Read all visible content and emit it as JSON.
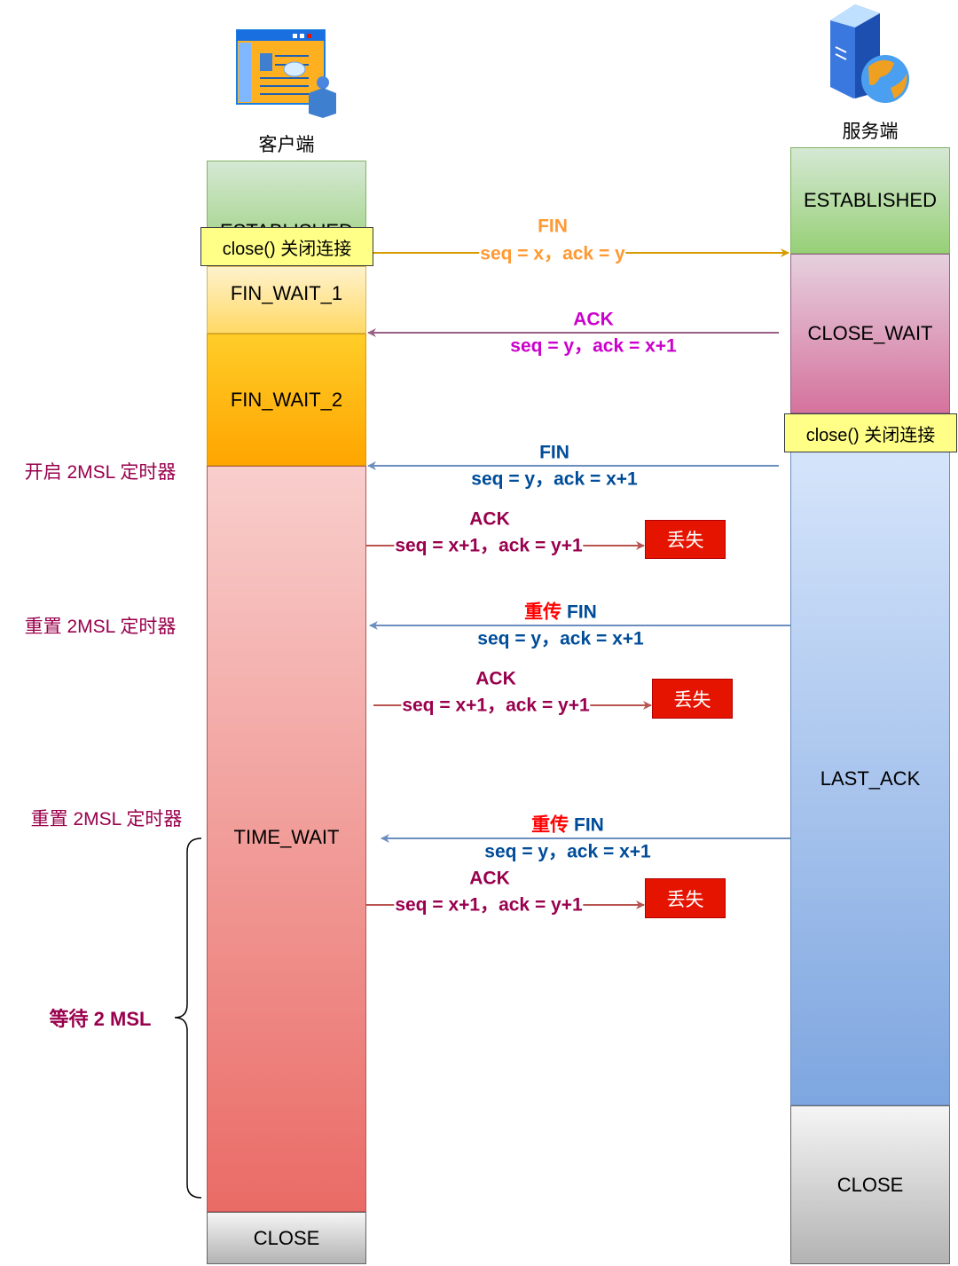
{
  "client": {
    "title": "客户端",
    "icon": "client-browser-user-icon",
    "states": {
      "established": "ESTABLISHED",
      "close_call": "close() 关闭连接",
      "fin_wait_1": "FIN_WAIT_1",
      "fin_wait_2": "FIN_WAIT_2",
      "time_wait": "TIME_WAIT",
      "close": "CLOSE"
    }
  },
  "server": {
    "title": "服务端",
    "icon": "server-globe-icon",
    "states": {
      "established": "ESTABLISHED",
      "close_wait": "CLOSE_WAIT",
      "close_call": "close() 关闭连接",
      "last_ack": "LAST_ACK",
      "close": "CLOSE"
    }
  },
  "side_labels": {
    "start_timer": "开启 2MSL 定时器",
    "reset_timer_1": "重置 2MSL 定时器",
    "reset_timer_2": "重置 2MSL 定时器",
    "wait_2msl": "等待 2 MSL"
  },
  "messages": [
    {
      "direction": "client-to-server",
      "title": "FIN",
      "detail": "seq = x，ack = y",
      "color": "#ff9933",
      "line_color": "#d79b00"
    },
    {
      "direction": "server-to-client",
      "title": "ACK",
      "detail": "seq = y，ack = x+1",
      "color": "#cc00cc",
      "line_color": "#996185"
    },
    {
      "direction": "server-to-client",
      "title": "FIN",
      "detail": "seq = y，ack = x+1",
      "color": "#004c99",
      "line_color": "#6c8ebf"
    },
    {
      "direction": "client-to-server",
      "title": "ACK",
      "detail": "seq = x+1，ack = y+1",
      "color": "#99004d",
      "line_color": "#b85450",
      "lost": "丢失"
    },
    {
      "direction": "server-to-client",
      "title_prefix": "重传",
      "title": "FIN",
      "detail": "seq = y，ack = x+1",
      "color": "#004c99",
      "prefix_color": "#ff0000",
      "line_color": "#6c8ebf"
    },
    {
      "direction": "client-to-server",
      "title": "ACK",
      "detail": "seq = x+1，ack = y+1",
      "color": "#99004d",
      "line_color": "#b85450",
      "lost": "丢失"
    },
    {
      "direction": "server-to-client",
      "title_prefix": "重传",
      "title": "FIN",
      "detail": "seq = y，ack = x+1",
      "color": "#004c99",
      "prefix_color": "#ff0000",
      "line_color": "#6c8ebf"
    },
    {
      "direction": "client-to-server",
      "title": "ACK",
      "detail": "seq = x+1，ack = y+1",
      "color": "#99004d",
      "line_color": "#b85450",
      "lost": "丢失"
    }
  ]
}
